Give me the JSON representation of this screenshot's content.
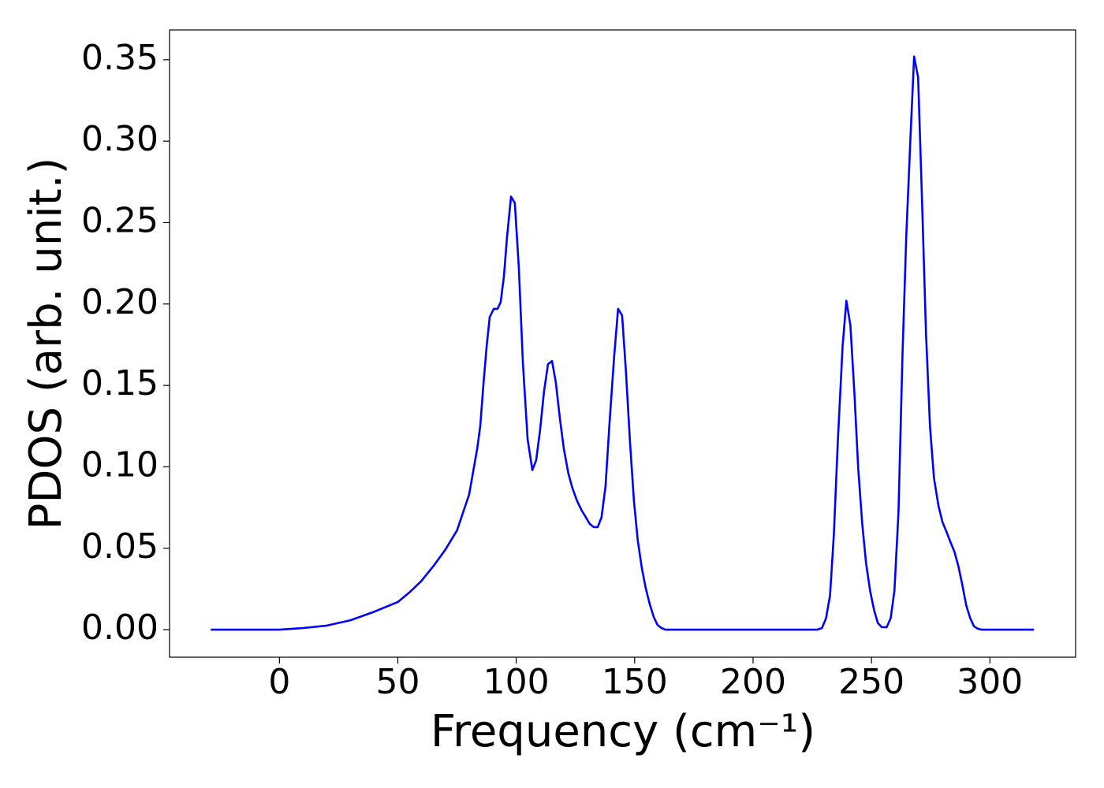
{
  "chart_data": {
    "type": "line",
    "xlabel": "Frequency (cm⁻¹)",
    "ylabel": "PDOS (arb. unit.)",
    "color": "#0000ff",
    "x": [
      -29,
      0,
      10,
      20,
      30,
      40,
      50,
      55,
      60,
      65,
      70,
      75,
      80.1,
      81.8,
      83.5,
      84.8,
      86.1,
      87.5,
      88.8,
      90.5,
      92.1,
      93.4,
      94.8,
      96.1,
      97.8,
      99.4,
      101.1,
      102.8,
      104.8,
      106.8,
      108.4,
      110.1,
      111.7,
      113.4,
      115.1,
      116.7,
      118.4,
      120.1,
      122.0,
      123.7,
      125.7,
      127.7,
      129.4,
      131.0,
      132.7,
      134.4,
      136.0,
      137.7,
      139.3,
      141.3,
      143.0,
      144.7,
      146.3,
      148.0,
      149.7,
      151.3,
      153.0,
      154.6,
      156.3,
      158.0,
      159.6,
      161.3,
      163.0,
      227,
      229.1,
      230.8,
      232.5,
      234.1,
      235.8,
      237.8,
      239.4,
      241.1,
      242.8,
      244.4,
      246.1,
      247.7,
      249.4,
      251.1,
      252.7,
      254.4,
      256.4,
      258.1,
      259.7,
      261.4,
      263.1,
      264.7,
      266.4,
      268.0,
      269.7,
      271.4,
      273.0,
      274.7,
      276.4,
      278.3,
      280.0,
      281.7,
      283.3,
      285.0,
      286.7,
      288.3,
      290.0,
      291.7,
      293.3,
      295.0,
      296.6,
      318.6
    ],
    "values": [
      0,
      0,
      0.001,
      0.0025,
      0.0058,
      0.011,
      0.017,
      0.023,
      0.03,
      0.039,
      0.049,
      0.061,
      0.083,
      0.097,
      0.111,
      0.125,
      0.15,
      0.174,
      0.192,
      0.197,
      0.197,
      0.201,
      0.217,
      0.241,
      0.266,
      0.262,
      0.222,
      0.164,
      0.117,
      0.098,
      0.104,
      0.123,
      0.146,
      0.163,
      0.165,
      0.152,
      0.13,
      0.111,
      0.096,
      0.087,
      0.079,
      0.073,
      0.069,
      0.065,
      0.063,
      0.063,
      0.069,
      0.088,
      0.125,
      0.167,
      0.197,
      0.193,
      0.159,
      0.116,
      0.079,
      0.055,
      0.038,
      0.026,
      0.016,
      0.008,
      0.003,
      0.001,
      0,
      0,
      0.001,
      0.007,
      0.021,
      0.058,
      0.116,
      0.174,
      0.202,
      0.187,
      0.145,
      0.099,
      0.065,
      0.041,
      0.024,
      0.012,
      0.004,
      0.0015,
      0.0015,
      0.007,
      0.024,
      0.072,
      0.169,
      0.242,
      0.3,
      0.352,
      0.339,
      0.261,
      0.183,
      0.125,
      0.093,
      0.076,
      0.066,
      0.06,
      0.054,
      0.048,
      0.039,
      0.028,
      0.015,
      0.007,
      0.002,
      0.0005,
      0,
      0
    ],
    "xlim": [
      -46.4,
      336.2
    ],
    "ylim": [
      -0.0169,
      0.3683
    ],
    "xticks": [
      0,
      50,
      100,
      150,
      200,
      250,
      300
    ],
    "yticks": [
      {
        "value": 0,
        "label": "0.00"
      },
      0.05,
      {
        "value": 0.1,
        "label": "0.10"
      },
      0.15,
      {
        "value": 0.2,
        "label": "0.20"
      },
      0.25,
      {
        "value": 0.3,
        "label": "0.30"
      },
      0.35
    ]
  }
}
